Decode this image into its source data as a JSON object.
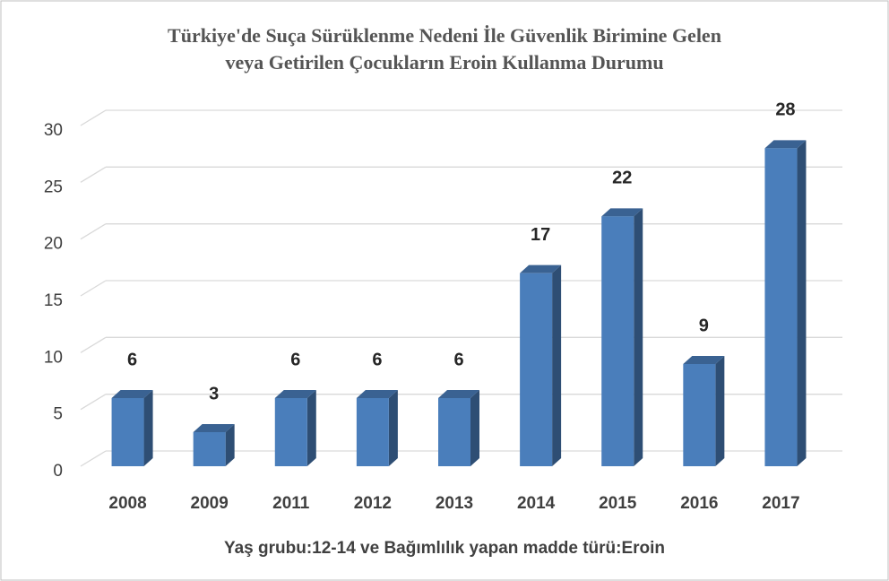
{
  "chart_data": {
    "type": "bar3d",
    "title": [
      "Türkiye'de Suça Sürüklenme Nedeni İle Güvenlik Birimine Gelen",
      "veya Getirilen Çocukların Eroin Kullanma Durumu"
    ],
    "x_label": "Yaş grubu:12-14 ve Bağımlılık yapan madde türü:Eroin",
    "categories": [
      "2008",
      "2009",
      "2011",
      "2012",
      "2013",
      "2014",
      "2015",
      "2016",
      "2017"
    ],
    "values": [
      6,
      3,
      6,
      6,
      6,
      17,
      22,
      9,
      28
    ],
    "color": "#4a7ebb",
    "ylim": [
      0,
      30
    ],
    "yticks": [
      0,
      5,
      10,
      15,
      20,
      25,
      30
    ],
    "grid": true
  }
}
